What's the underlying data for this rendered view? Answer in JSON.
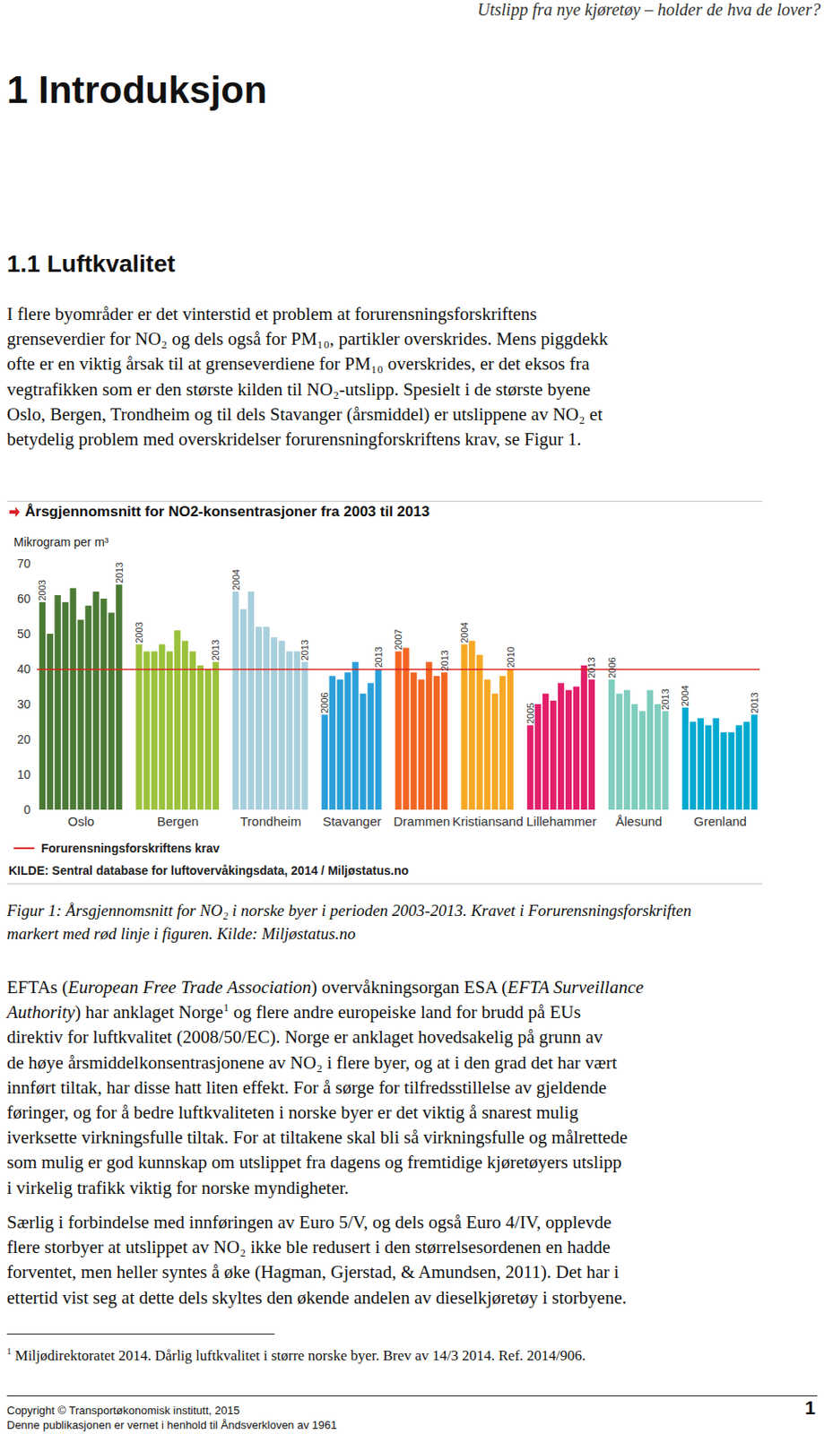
{
  "header": {
    "running_title": "Utslipp fra nye kjøretøy – holder de hva de lover?"
  },
  "heading1": "1 Introduksjon",
  "heading2": "1.1 Luftkvalitet",
  "paragraphs": [
    [
      [
        "I flere byområder er det vinterstid et problem at forurensningsforskriftens"
      ],
      [
        "grenseverdier for NO₂ og dels også for PM₁₀, partikler overskrides. Mens piggdekk"
      ],
      [
        "ofte er en viktig årsak til at grenseverdiene for PM₁₀ overskrides, er det eksos fra"
      ],
      [
        "vegtrafikken som er den største kilden til NO₂-utslipp. Spesielt i de største byene"
      ],
      [
        "Oslo, Bergen, Trondheim og til dels Stavanger (årsmiddel) er utslippene av NO₂ et"
      ],
      [
        "betydelig problem med overskridelser forurensningforskriftens krav, se Figur 1."
      ]
    ],
    [
      [
        "EFTAs (",
        {
          "italic": "European Free Trade Association"
        },
        ") overvåkningsorgan ESA (",
        {
          "italic": "EFTA Surveillance"
        }
      ],
      [
        {
          "italic": "Authority"
        },
        ") har anklaget Norge",
        {
          "sup": 1
        },
        " og flere andre europeiske land for brudd på EUs"
      ],
      [
        "direktiv for luftkvalitet (2008/50/EC). Norge er anklaget hovedsakelig på grunn av"
      ],
      [
        "de høye årsmiddelkonsentrasjonene av NO₂ i flere byer, og at i den grad det har vært"
      ],
      [
        "innført tiltak, har disse hatt liten effekt. For å sørge for tilfredsstillelse av gjeldende"
      ],
      [
        "føringer, og for å bedre luftkvaliteten i norske byer er det viktig å snarest mulig"
      ],
      [
        "iverksette virkningsfulle tiltak. For at tiltakene skal bli så virkningsfulle og målrettede"
      ],
      [
        "som mulig er god kunnskap om utslippet fra dagens og fremtidige kjøretøyers utslipp"
      ],
      [
        "i virkelig trafikk viktig for norske myndigheter."
      ]
    ],
    [
      [
        "Særlig i forbindelse med innføringen av Euro 5/V, og dels også Euro 4/IV, opplevde"
      ],
      [
        "flere storbyer at utslippet av NO₂ ikke ble redusert i den størrelsesordenen en hadde"
      ],
      [
        "forventet, men heller syntes å øke (Hagman, Gjerstad, & Amundsen, 2011). Det har i"
      ],
      [
        "ettertid vist seg at dette dels skyltes den økende andelen av dieselkjøretøy i storbyene."
      ]
    ]
  ],
  "chart_data": {
    "type": "bar",
    "title": "Årsgjennomsnitt for NO2-konsentrasjoner fra 2003 til 2013",
    "ylabel": "Mikrogram per m³",
    "categories": [
      "Oslo",
      "Bergen",
      "Trondheim",
      "Stavanger",
      "Drammen",
      "Kristiansand",
      "Lillehammer",
      "Ålesund",
      "Grenland"
    ],
    "groups": [
      {
        "color": "#4a7a35",
        "values": [
          59,
          50,
          61,
          59,
          63,
          54,
          58,
          62,
          60,
          56,
          64
        ],
        "bar_labels": [
          2003,
          null,
          null,
          null,
          null,
          null,
          null,
          null,
          null,
          null,
          2013
        ]
      },
      {
        "color": "#9bc23c",
        "values": [
          47,
          45,
          45,
          47,
          45,
          51,
          48,
          45,
          41,
          40,
          42
        ],
        "bar_labels": [
          2003,
          null,
          null,
          null,
          null,
          null,
          null,
          null,
          null,
          null,
          2013
        ]
      },
      {
        "color": "#a8cfdc",
        "values": [
          62,
          57,
          62,
          52,
          52,
          49,
          48,
          45,
          45,
          42
        ],
        "bar_labels": [
          2004,
          null,
          null,
          null,
          null,
          null,
          null,
          null,
          null,
          2013
        ]
      },
      {
        "color": "#2b9fd9",
        "values": [
          27,
          38,
          37,
          39,
          42,
          33,
          36,
          40
        ],
        "bar_labels": [
          2006,
          null,
          null,
          null,
          null,
          null,
          null,
          2013
        ]
      },
      {
        "color": "#f26522",
        "values": [
          45,
          46,
          39,
          37,
          42,
          38,
          39
        ],
        "bar_labels": [
          2007,
          null,
          null,
          null,
          null,
          null,
          2013
        ]
      },
      {
        "color": "#f7a823",
        "values": [
          47,
          48,
          44,
          37,
          33,
          38,
          40
        ],
        "bar_labels": [
          2004,
          null,
          null,
          null,
          null,
          null,
          2010
        ]
      },
      {
        "color": "#e21f6b",
        "values": [
          24,
          30,
          33,
          31,
          36,
          34,
          35,
          41,
          37
        ],
        "bar_labels": [
          2005,
          null,
          null,
          null,
          null,
          null,
          null,
          null,
          2013
        ]
      },
      {
        "color": "#7fcdbe",
        "values": [
          37,
          33,
          34,
          30,
          28,
          34,
          30,
          28
        ],
        "bar_labels": [
          2006,
          null,
          null,
          null,
          null,
          null,
          null,
          2013
        ]
      },
      {
        "color": "#00a9d0",
        "values": [
          29,
          25,
          26,
          24,
          26,
          22,
          22,
          24,
          25,
          27
        ],
        "bar_labels": [
          2004,
          null,
          null,
          null,
          null,
          null,
          null,
          null,
          null,
          2013
        ]
      }
    ],
    "ylim": [
      0,
      70
    ],
    "yticks": [
      0,
      10,
      20,
      30,
      40,
      50,
      60,
      70
    ],
    "limit": {
      "value": 40,
      "label": "Forurensningsforskriftens krav",
      "color": "#e0201c"
    },
    "source": "KILDE: Sentral database for luftovervåkingsdata, 2014 / Miljøstatus.no"
  },
  "caption": [
    "Figur 1: Årsgjennomsnitt for NO₂ i norske byer i perioden 2003-2013. Kravet i Forurensningsforskriften",
    "markert med rød linje i figuren. Kilde: Miljøstatus.no"
  ],
  "footnote": {
    "marker": 1,
    "text": "Miljødirektoratet 2014. Dårlig luftkvalitet i større norske byer. Brev av 14/3 2014. Ref. 2014/906."
  },
  "footer": {
    "copyright": "Copyright © Transportøkonomisk institutt, 2015",
    "page": 1,
    "notice": "Denne publikasjonen er vernet i henhold til Åndsverkloven av 1961"
  }
}
